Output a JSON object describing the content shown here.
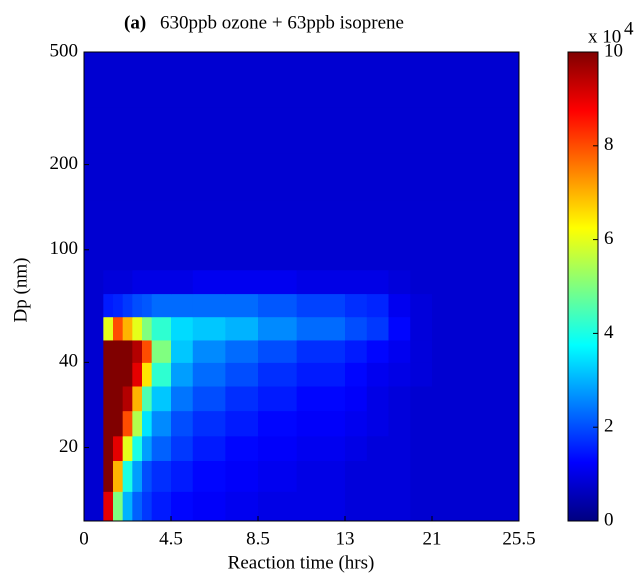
{
  "chart_data": {
    "type": "heatmap",
    "title_tag": "(a)",
    "title": "630ppb ozone + 63ppb isoprene",
    "xlabel": "Reaction time (hrs)",
    "ylabel": "Dp (nm)",
    "xlim": [
      0,
      25.5
    ],
    "xticks": [
      0,
      4.5,
      8.5,
      13,
      21,
      25.5
    ],
    "ylim": [
      11,
      500
    ],
    "yticks": [
      20,
      40,
      100,
      200,
      500
    ],
    "yscale": "log",
    "colormap": "jet",
    "clim": [
      0,
      10
    ],
    "cticks": [
      0,
      2,
      4,
      6,
      8,
      10
    ],
    "colorbar_label": "x 10",
    "colorbar_exponent": "4",
    "xbins": [
      0,
      1,
      1.5,
      2,
      2.5,
      3,
      3.5,
      4.5,
      5.5,
      7,
      8.5,
      10.5,
      13,
      15,
      17,
      19,
      21,
      25.5
    ],
    "ybins": [
      11,
      14,
      18,
      22,
      27,
      33,
      40,
      48,
      58,
      70,
      85,
      110,
      150,
      220,
      320,
      500
    ],
    "z": [
      [
        0.8,
        9,
        5,
        3,
        2.2,
        1.8,
        1.5,
        1.3,
        1.2,
        1.1,
        1,
        1,
        0.9,
        0.9,
        0.9,
        0.8,
        0.8
      ],
      [
        0.8,
        10,
        7,
        4,
        2.8,
        2,
        1.7,
        1.5,
        1.3,
        1.2,
        1.1,
        1,
        0.9,
        0.9,
        0.9,
        0.8,
        0.8
      ],
      [
        0.8,
        10,
        9,
        6,
        4,
        2.8,
        2.2,
        1.8,
        1.5,
        1.3,
        1.2,
        1.1,
        1,
        0.9,
        0.9,
        0.8,
        0.8
      ],
      [
        0.8,
        10,
        10,
        8,
        5.5,
        3.5,
        2.6,
        2,
        1.7,
        1.5,
        1.3,
        1.2,
        1.1,
        1,
        0.9,
        0.8,
        0.8
      ],
      [
        0.8,
        10,
        10,
        9.5,
        7,
        4.5,
        3.2,
        2.4,
        2,
        1.7,
        1.5,
        1.3,
        1.2,
        1,
        0.9,
        0.8,
        0.8
      ],
      [
        0.8,
        10,
        10,
        10,
        9,
        6.5,
        4.2,
        2.8,
        2.3,
        2,
        1.7,
        1.5,
        1.3,
        1.1,
        1,
        0.9,
        0.8
      ],
      [
        0.8,
        10,
        10,
        10,
        9.5,
        8,
        5,
        3.2,
        2.6,
        2.3,
        2,
        1.7,
        1.5,
        1.3,
        1.1,
        0.9,
        0.8
      ],
      [
        0.8,
        6,
        8,
        7,
        6,
        5,
        4.2,
        3.4,
        3.2,
        3,
        2.6,
        2.3,
        2,
        1.8,
        1.3,
        0.9,
        0.8
      ],
      [
        0.8,
        1.5,
        1.6,
        1.8,
        2,
        2.1,
        2.3,
        2.3,
        2.3,
        2.3,
        2.1,
        1.9,
        1.7,
        1.6,
        1.1,
        0.9,
        0.8
      ],
      [
        0.8,
        0.9,
        0.9,
        0.9,
        1,
        1,
        1,
        1,
        1.1,
        1.1,
        1.1,
        1,
        1,
        1,
        0.9,
        0.8,
        0.8
      ],
      [
        0.8,
        0.8,
        0.8,
        0.8,
        0.8,
        0.8,
        0.8,
        0.8,
        0.8,
        0.8,
        0.8,
        0.8,
        0.8,
        0.8,
        0.8,
        0.8,
        0.8
      ],
      [
        0.8,
        0.8,
        0.8,
        0.8,
        0.8,
        0.8,
        0.8,
        0.8,
        0.8,
        0.8,
        0.8,
        0.8,
        0.8,
        0.8,
        0.8,
        0.8,
        0.8
      ],
      [
        0.8,
        0.8,
        0.8,
        0.8,
        0.8,
        0.8,
        0.8,
        0.8,
        0.8,
        0.8,
        0.8,
        0.8,
        0.8,
        0.8,
        0.8,
        0.8,
        0.8
      ],
      [
        0.8,
        0.8,
        0.8,
        0.8,
        0.8,
        0.8,
        0.8,
        0.8,
        0.8,
        0.8,
        0.8,
        0.8,
        0.8,
        0.8,
        0.8,
        0.8,
        0.8
      ],
      [
        0.8,
        0.8,
        0.8,
        0.8,
        0.8,
        0.8,
        0.8,
        0.8,
        0.8,
        0.8,
        0.8,
        0.8,
        0.8,
        0.8,
        0.8,
        0.8,
        0.8
      ]
    ]
  }
}
